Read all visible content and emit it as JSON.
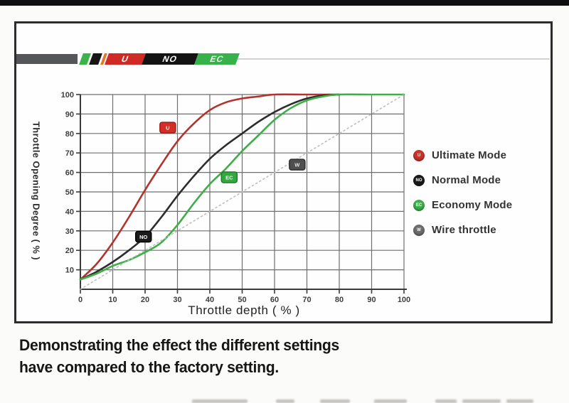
{
  "logo": {
    "blocks": [
      {
        "label": "U",
        "color": "#cf2b24"
      },
      {
        "label": "NO",
        "color": "#131313"
      },
      {
        "label": "EC",
        "color": "#37b24a"
      }
    ]
  },
  "legend": {
    "items": [
      {
        "abbr": "U",
        "label": "Ultimate Mode",
        "color": "#c8342b"
      },
      {
        "abbr": "NO",
        "label": "Normal Mode",
        "color": "#1b1b1b"
      },
      {
        "abbr": "EC",
        "label": "Economy Mode",
        "color": "#3eb04c"
      },
      {
        "abbr": "W",
        "label": "Wire throttle",
        "color": "#6e6e6e"
      }
    ]
  },
  "chart_data": {
    "type": "line",
    "title": "",
    "xlabel": "Throttle depth ( % )",
    "ylabel": "Throttle Opening Degree ( % )",
    "xlim": [
      0,
      100
    ],
    "ylim": [
      0,
      100
    ],
    "x_ticks": [
      0,
      10,
      20,
      30,
      40,
      50,
      60,
      70,
      80,
      90,
      100
    ],
    "y_ticks": [
      10,
      20,
      30,
      40,
      50,
      60,
      70,
      80,
      90,
      100
    ],
    "grid": true,
    "legend_position": "right",
    "series": [
      {
        "name": "Ultimate Mode",
        "color": "#b5322c",
        "style": "solid",
        "points": [
          [
            0,
            5
          ],
          [
            5,
            13
          ],
          [
            10,
            24
          ],
          [
            15,
            37
          ],
          [
            20,
            51
          ],
          [
            25,
            64
          ],
          [
            30,
            76
          ],
          [
            35,
            85
          ],
          [
            40,
            92
          ],
          [
            45,
            96
          ],
          [
            50,
            98
          ],
          [
            55,
            99
          ],
          [
            60,
            100
          ],
          [
            70,
            100
          ],
          [
            80,
            100
          ]
        ]
      },
      {
        "name": "Normal Mode",
        "color": "#2d2d2d",
        "style": "solid",
        "points": [
          [
            0,
            5
          ],
          [
            5,
            9
          ],
          [
            10,
            14
          ],
          [
            15,
            20
          ],
          [
            20,
            27
          ],
          [
            25,
            37
          ],
          [
            30,
            48
          ],
          [
            35,
            58
          ],
          [
            40,
            67
          ],
          [
            45,
            74
          ],
          [
            50,
            80
          ],
          [
            55,
            86
          ],
          [
            60,
            91
          ],
          [
            65,
            95
          ],
          [
            70,
            98
          ],
          [
            75,
            99.5
          ],
          [
            80,
            100
          ]
        ]
      },
      {
        "name": "Economy Mode",
        "color": "#3fae47",
        "style": "solid",
        "points": [
          [
            0,
            5
          ],
          [
            5,
            8
          ],
          [
            10,
            12
          ],
          [
            15,
            15
          ],
          [
            20,
            19
          ],
          [
            25,
            24
          ],
          [
            30,
            33
          ],
          [
            35,
            44
          ],
          [
            40,
            54
          ],
          [
            45,
            62
          ],
          [
            50,
            71
          ],
          [
            55,
            79
          ],
          [
            60,
            87
          ],
          [
            65,
            93
          ],
          [
            70,
            97
          ],
          [
            75,
            99
          ],
          [
            80,
            100
          ],
          [
            90,
            100
          ],
          [
            100,
            100
          ]
        ]
      },
      {
        "name": "Wire throttle",
        "color": "#bdbdbd",
        "style": "dotted",
        "points": [
          [
            0,
            0
          ],
          [
            100,
            100
          ]
        ]
      }
    ],
    "annotations": [
      {
        "text": "U",
        "x": 27,
        "y": 83,
        "bg": "#d42f27",
        "border": "#9e1f18",
        "fg": "#ffffff"
      },
      {
        "text": "NO",
        "x": 19.5,
        "y": 27,
        "bg": "#1c1c1c",
        "border": "#000000",
        "fg": "#ffffff"
      },
      {
        "text": "EC",
        "x": 46,
        "y": 57.5,
        "bg": "#33a93f",
        "border": "#1d7d28",
        "fg": "#eafbe9"
      },
      {
        "text": "W",
        "x": 67,
        "y": 64,
        "bg": "#4f4f4f",
        "border": "#303030",
        "fg": "#e8e8e8"
      }
    ]
  },
  "caption": {
    "line1": "Demonstrating the effect the different settings",
    "line2": "have compared to the factory setting."
  }
}
